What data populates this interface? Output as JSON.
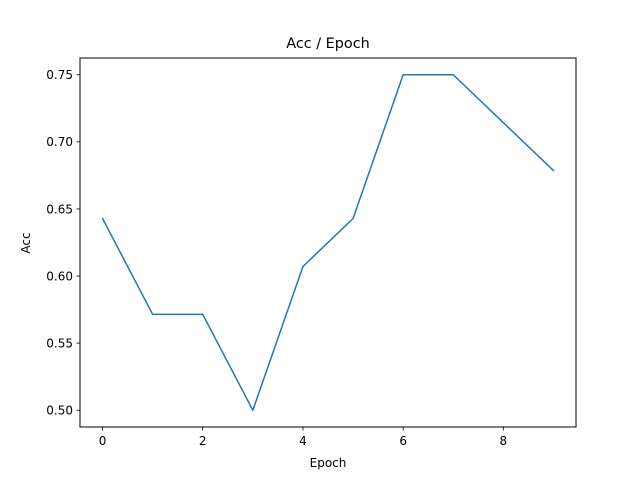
{
  "chart_data": {
    "type": "line",
    "title": "Acc / Epoch",
    "xlabel": "Epoch",
    "ylabel": "Acc",
    "x": [
      0,
      1,
      2,
      3,
      4,
      5,
      6,
      7,
      8,
      9
    ],
    "series": [
      {
        "values": [
          0.6429,
          0.5714,
          0.5714,
          0.5,
          0.6071,
          0.6429,
          0.75,
          0.75,
          0.7143,
          0.6786
        ],
        "color": "#1f77b4"
      }
    ],
    "xlim": [
      -0.45,
      9.45
    ],
    "ylim": [
      0.4875,
      0.7625
    ],
    "xticks": [
      0,
      2,
      4,
      6,
      8
    ],
    "xtick_labels": [
      "0",
      "2",
      "4",
      "6",
      "8"
    ],
    "yticks": [
      0.5,
      0.55,
      0.6,
      0.65,
      0.7,
      0.75
    ],
    "ytick_labels": [
      "0.50",
      "0.55",
      "0.60",
      "0.65",
      "0.70",
      "0.75"
    ],
    "grid": false,
    "legend": "none"
  }
}
